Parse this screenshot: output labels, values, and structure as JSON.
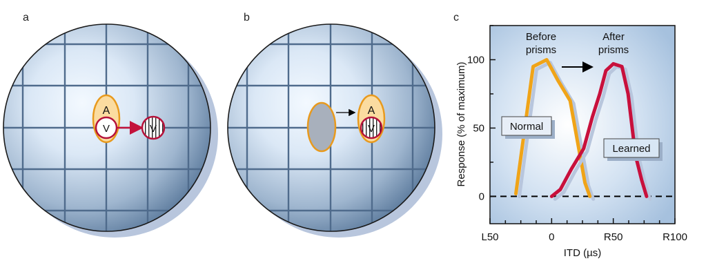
{
  "panels": {
    "a": {
      "label": "a",
      "field_label": "A",
      "visual_label": "V",
      "shifted_visual_label": "V"
    },
    "b": {
      "label": "b",
      "field_label": "A",
      "visual_label": "V"
    },
    "c": {
      "label": "c"
    }
  },
  "colors": {
    "globe_light": "#eef6fd",
    "globe_dark": "#4f6f93",
    "grid": "#4f6b8c",
    "auditory_fill": "#fbdca0",
    "auditory_stroke": "#e89a1e",
    "visual_stroke": "#b5123a",
    "arrow_red": "#c3123b",
    "gray_ellipse": "#a8b0bc",
    "plot_bg_center": "#ffffff",
    "plot_bg_edge": "#a9c4df",
    "normal_curve": "#f0a418",
    "learned_curve": "#c8103c",
    "shadow": "#b8c6dd"
  },
  "chart_data": {
    "type": "line",
    "ylabel": "Response (% of maximum)",
    "xlabel": "ITD (µs)",
    "xlim": [
      -50,
      100
    ],
    "ylim": [
      -20,
      125
    ],
    "x_ticks": [
      {
        "value": -50,
        "label": "L50"
      },
      {
        "value": 0,
        "label": "0"
      },
      {
        "value": 50,
        "label": "R50"
      },
      {
        "value": 100,
        "label": "R100"
      }
    ],
    "y_ticks": [
      {
        "value": 0,
        "label": "0"
      },
      {
        "value": 50,
        "label": "50"
      },
      {
        "value": 100,
        "label": "100"
      }
    ],
    "zero_line": "dashed",
    "series": [
      {
        "name": "Normal",
        "color": "#f0a418",
        "points": [
          [
            -29,
            2
          ],
          [
            -15,
            95
          ],
          [
            -4,
            100
          ],
          [
            5,
            85
          ],
          [
            15,
            70
          ],
          [
            22,
            35
          ],
          [
            27,
            10
          ],
          [
            31,
            0
          ]
        ]
      },
      {
        "name": "Learned",
        "color": "#c8103c",
        "points": [
          [
            0,
            0
          ],
          [
            7,
            5
          ],
          [
            16,
            20
          ],
          [
            26,
            35
          ],
          [
            33,
            58
          ],
          [
            39,
            75
          ],
          [
            44,
            92
          ],
          [
            50,
            97
          ],
          [
            57,
            95
          ],
          [
            62,
            75
          ],
          [
            68,
            30
          ],
          [
            73,
            12
          ],
          [
            77,
            0
          ]
        ]
      }
    ],
    "annotations": {
      "before_line1": "Before",
      "before_line2": "prisms",
      "after_line1": "After",
      "after_line2": "prisms",
      "normal_box": "Normal",
      "learned_box": "Learned"
    }
  }
}
